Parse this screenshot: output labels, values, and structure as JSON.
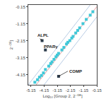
{
  "chart_data": {
    "type": "scatter",
    "xlabel": "Log₁₀ [Group 2, 2⁻ᴰᴱ]",
    "ylabel": "2⁻ᴰᴱ]",
    "xlim": [
      -5.35,
      -0.15
    ],
    "ylim": [
      -4.75,
      -0.05
    ],
    "xticks": [
      -5.15,
      -4.15,
      -3.15,
      -2.15,
      -1.15,
      -0.15
    ],
    "yticks": [
      -4.15,
      -3.15,
      -2.15,
      -1.15,
      -0.15
    ],
    "grid": false,
    "series": [
      {
        "type": "line",
        "color": "#b8cce4",
        "x": [
          -5.35,
          -0.652
        ],
        "values": [
          -4.748,
          -0.05
        ]
      },
      {
        "type": "line",
        "color": "#b8cce4",
        "x": [
          -4.148,
          -0.15
        ],
        "values": [
          -4.75,
          -0.752
        ]
      },
      {
        "type": "line",
        "color": "#e8a0a0",
        "x": [
          -4.75,
          -0.15
        ],
        "values": [
          -4.75,
          -0.15
        ]
      },
      {
        "type": "scatter",
        "color": "#40c8d8",
        "marker": "square",
        "x": [
          -4.85,
          -4.65,
          -4.5,
          -4.35,
          -4.2,
          -4.05,
          -3.8,
          -3.65,
          -3.55,
          -3.4,
          -3.25,
          -3.15,
          -3.05,
          -2.8,
          -2.65,
          -2.45,
          -2.35,
          -2.2,
          -2.05,
          -1.95,
          -1.75,
          -1.6,
          -1.45,
          -1.2,
          -0.95,
          -0.65,
          -0.45
        ],
        "values": [
          -4.6,
          -4.45,
          -4.3,
          -4.2,
          -4.05,
          -3.85,
          -3.65,
          -3.5,
          -3.4,
          -3.25,
          -3.1,
          -3.0,
          -2.9,
          -2.7,
          -2.55,
          -2.35,
          -2.25,
          -2.15,
          -2.0,
          -1.9,
          -1.7,
          -1.55,
          -1.4,
          -1.15,
          -0.9,
          -0.65,
          -0.45
        ]
      },
      {
        "type": "scatter",
        "color": "#2a3a4a",
        "marker": "square",
        "x": [
          -4.3,
          -4.05,
          -3.05
        ],
        "values": [
          -2.15,
          -2.7,
          -4.25
        ]
      }
    ],
    "annotations": [
      {
        "text": "ALPL",
        "x": -4.3,
        "y": -2.15,
        "text_x": -4.75,
        "text_y": -1.85
      },
      {
        "text": "PPARγ",
        "x": -4.05,
        "y": -2.7,
        "text_x": -4.3,
        "text_y": -2.5
      },
      {
        "text": "COMP",
        "x": -3.05,
        "y": -4.25,
        "text_x": -2.35,
        "text_y": -3.95
      }
    ]
  }
}
